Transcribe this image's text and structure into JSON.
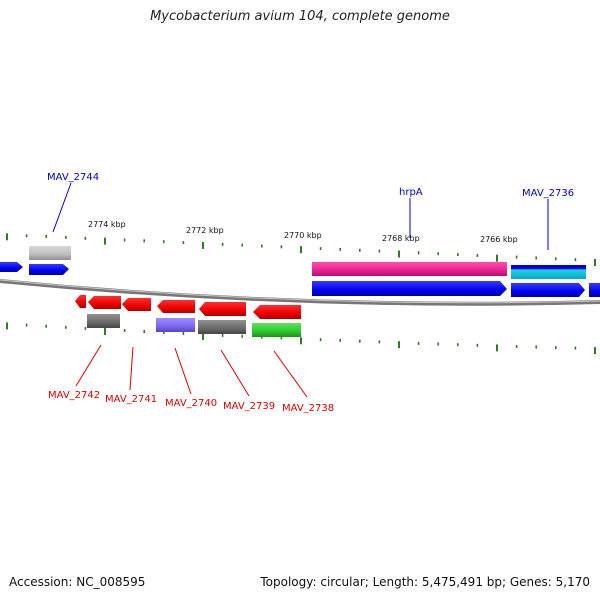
{
  "title": "Mycobacterium avium 104, complete genome",
  "footer": {
    "accession": "Accession: NC_008595",
    "summary": "Topology: circular; Length: 5,475,491 bp; Genes: 5,170"
  },
  "scale_labels": [
    "2774 kbp",
    "2772 kbp",
    "2770 kbp",
    "2768 kbp",
    "2766 kbp"
  ],
  "colors": {
    "backbone": "#7a7a7a",
    "label_top": "#0000cc",
    "label_bottom": "#dd0000",
    "tick": "#2e7d1e"
  },
  "genes_top": [
    {
      "name": "MAV_2744"
    },
    {
      "name": "hrpA"
    },
    {
      "name": "MAV_2736"
    }
  ],
  "genes_bottom": [
    {
      "name": "MAV_2742"
    },
    {
      "name": "MAV_2741"
    },
    {
      "name": "MAV_2740"
    },
    {
      "name": "MAV_2739"
    },
    {
      "name": "MAV_2738"
    }
  ]
}
